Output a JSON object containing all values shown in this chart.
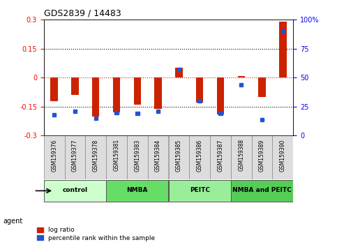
{
  "title": "GDS2839 / 14483",
  "samples": [
    "GSM159376",
    "GSM159377",
    "GSM159378",
    "GSM159381",
    "GSM159383",
    "GSM159384",
    "GSM159385",
    "GSM159386",
    "GSM159387",
    "GSM159388",
    "GSM159389",
    "GSM159390"
  ],
  "log_ratios": [
    -0.12,
    -0.09,
    -0.2,
    -0.18,
    -0.14,
    -0.16,
    0.05,
    -0.13,
    -0.19,
    0.01,
    -0.1,
    0.29
  ],
  "percentile_ranks": [
    18,
    21,
    15,
    20,
    19,
    21,
    57,
    30,
    19,
    44,
    14,
    90
  ],
  "groups": [
    {
      "label": "control",
      "start": 0,
      "end": 2,
      "color": "#ccffcc"
    },
    {
      "label": "NMBA",
      "start": 3,
      "end": 5,
      "color": "#66dd66"
    },
    {
      "label": "PEITC",
      "start": 6,
      "end": 8,
      "color": "#99ee99"
    },
    {
      "label": "NMBA and PEITC",
      "start": 9,
      "end": 11,
      "color": "#55cc55"
    }
  ],
  "ylim": [
    -0.3,
    0.3
  ],
  "yticks_left": [
    -0.3,
    -0.15,
    0,
    0.15,
    0.3
  ],
  "yticks_right": [
    0,
    25,
    50,
    75,
    100
  ],
  "bar_color": "#cc2200",
  "dot_color": "#2255cc",
  "hline_color": "#dd2200",
  "grid_color": "#000000",
  "legend_items": [
    "log ratio",
    "percentile rank within the sample"
  ],
  "agent_label": "agent"
}
